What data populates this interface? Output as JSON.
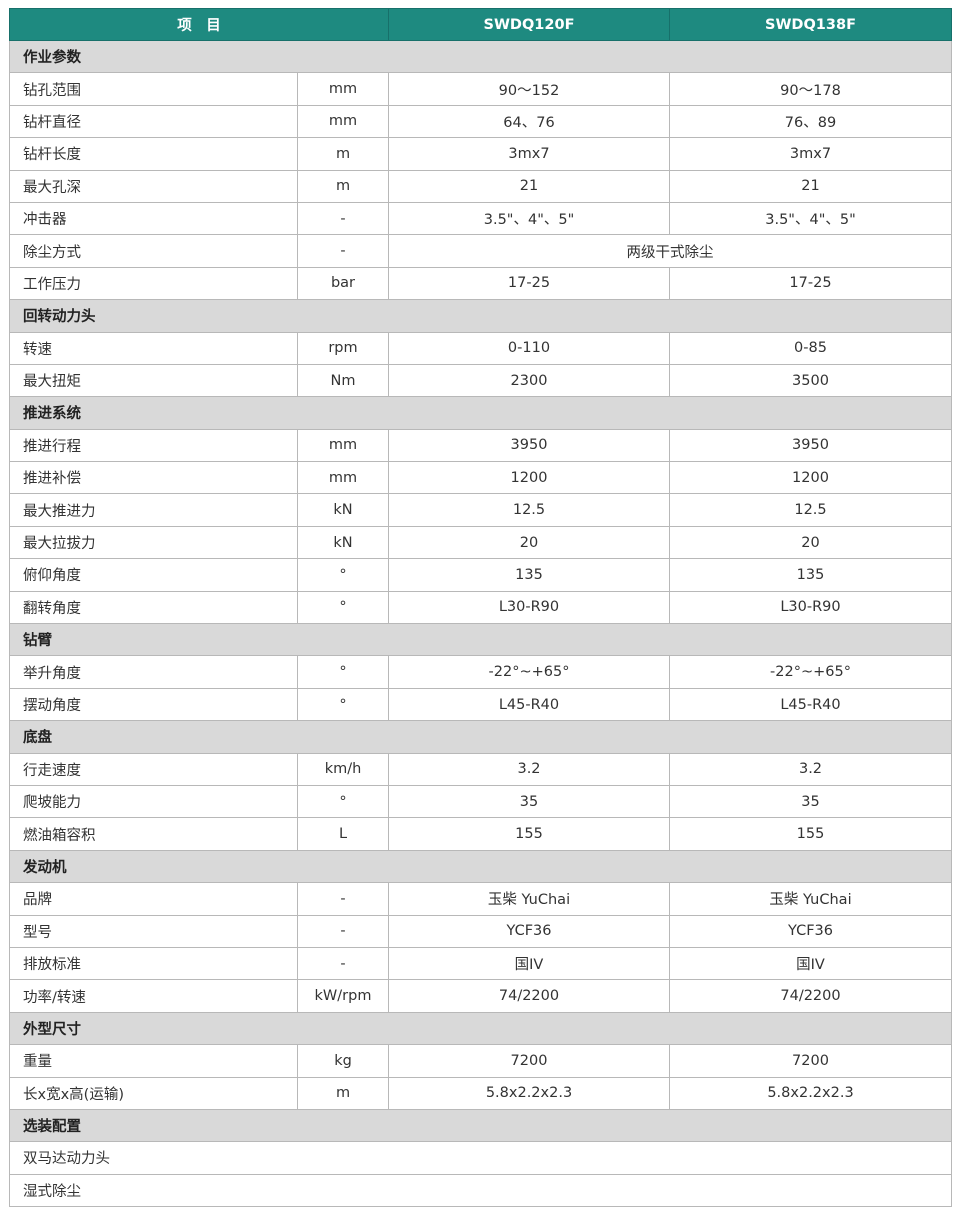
{
  "header": {
    "item": "项　目",
    "model1": "SWDQ120F",
    "model2": "SWDQ138F"
  },
  "colors": {
    "header_bg": "#1e8a80",
    "section_bg": "#d9d9d9"
  },
  "sections": [
    {
      "title": "作业参数",
      "rows": [
        {
          "name": "钻孔范围",
          "unit": "mm",
          "v1": "90～152",
          "v2": "90～178"
        },
        {
          "name": "钻杆直径",
          "unit": "mm",
          "v1": "64、76",
          "v2": "76、89"
        },
        {
          "name": "钻杆长度",
          "unit": "m",
          "v1": "3mx7",
          "v2": "3mx7"
        },
        {
          "name": "最大孔深",
          "unit": "m",
          "v1": "21",
          "v2": "21"
        },
        {
          "name": "冲击器",
          "unit": "-",
          "v1": "3.5\"、4\"、5\"",
          "v2": "3.5\"、4\"、5\""
        },
        {
          "name": "除尘方式",
          "unit": "-",
          "merged": "两级干式除尘"
        },
        {
          "name": "工作压力",
          "unit": "bar",
          "v1": "17-25",
          "v2": "17-25"
        }
      ]
    },
    {
      "title": "回转动力头",
      "rows": [
        {
          "name": "转速",
          "unit": "rpm",
          "v1": "0-110",
          "v2": "0-85"
        },
        {
          "name": "最大扭矩",
          "unit": "Nm",
          "v1": "2300",
          "v2": "3500"
        }
      ]
    },
    {
      "title": "推进系统",
      "rows": [
        {
          "name": "推进行程",
          "unit": "mm",
          "v1": "3950",
          "v2": "3950"
        },
        {
          "name": "推进补偿",
          "unit": "mm",
          "v1": "1200",
          "v2": "1200"
        },
        {
          "name": "最大推进力",
          "unit": "kN",
          "v1": "12.5",
          "v2": "12.5"
        },
        {
          "name": "最大拉拔力",
          "unit": "kN",
          "v1": "20",
          "v2": "20"
        },
        {
          "name": "俯仰角度",
          "unit": "°",
          "v1": "135",
          "v2": "135"
        },
        {
          "name": "翻转角度",
          "unit": "°",
          "v1": "L30-R90",
          "v2": "L30-R90"
        }
      ]
    },
    {
      "title": "钻臂",
      "rows": [
        {
          "name": "举升角度",
          "unit": "°",
          "v1": "-22°~+65°",
          "v2": "-22°~+65°"
        },
        {
          "name": "摆动角度",
          "unit": "°",
          "v1": "L45-R40",
          "v2": "L45-R40"
        }
      ]
    },
    {
      "title": "底盘",
      "rows": [
        {
          "name": "行走速度",
          "unit": "km/h",
          "v1": "3.2",
          "v2": "3.2"
        },
        {
          "name": "爬坡能力",
          "unit": "°",
          "v1": "35",
          "v2": "35"
        },
        {
          "name": "燃油箱容积",
          "unit": "L",
          "v1": "155",
          "v2": "155"
        }
      ]
    },
    {
      "title": "发动机",
      "rows": [
        {
          "name": "品牌",
          "unit": "-",
          "v1": "玉柴 YuChai",
          "v2": "玉柴 YuChai"
        },
        {
          "name": "型号",
          "unit": "-",
          "v1": "YCF36",
          "v2": "YCF36"
        },
        {
          "name": "排放标准",
          "unit": "-",
          "v1": "国IV",
          "v2": "国IV"
        },
        {
          "name": "功率/转速",
          "unit": "kW/rpm",
          "v1": "74/2200",
          "v2": "74/2200"
        }
      ]
    },
    {
      "title": "外型尺寸",
      "rows": [
        {
          "name": "重量",
          "unit": "kg",
          "v1": "7200",
          "v2": "7200"
        },
        {
          "name": "长x宽x高(运输)",
          "unit": "m",
          "v1": "5.8x2.2x2.3",
          "v2": "5.8x2.2x2.3"
        }
      ]
    },
    {
      "title": "选装配置",
      "rows": [
        {
          "name": "双马达动力头",
          "full": true
        },
        {
          "name": "湿式除尘",
          "full": true
        }
      ]
    }
  ]
}
